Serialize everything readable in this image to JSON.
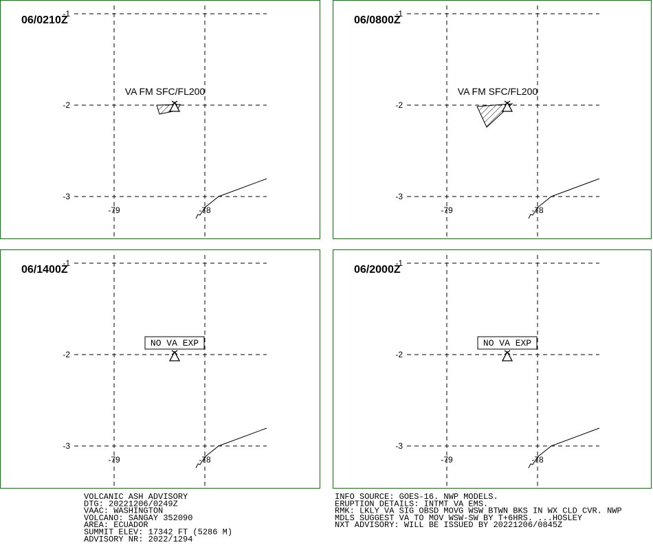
{
  "panels": [
    {
      "time": "06/0210Z",
      "label": "VA FM SFC/FL200"
    },
    {
      "time": "06/0800Z",
      "label": "VA FM SFC/FL200"
    },
    {
      "time": "06/1400Z",
      "label": "NO VA EXP"
    },
    {
      "time": "06/2000Z",
      "label": "NO VA EXP"
    }
  ],
  "lat_ticks": [
    -1,
    -2,
    -3
  ],
  "lon_ticks": [
    -79,
    -78
  ],
  "footer_left": [
    "VOLCANIC ASH ADVISORY",
    "DTG: 20221206/0249Z",
    "VAAC: WASHINGTON",
    "VOLCANO: SANGAY 352090",
    "AREA: ECUADOR",
    "SUMMIT ELEV: 17342 FT (5286 M)",
    "ADVISORY NR: 2022/1294"
  ],
  "footer_right": [
    "INFO SOURCE: GOES-16. NWP MODELS.",
    "ERUPTION DETAILS: INTMT VA EMS.",
    "RMK: LKLY VA SIG OBSD MOVG WSW BTWN BKS IN WX CLD CVR. NWP",
    "MDLS SUGGEST VA TO MOV WSW-SW BY T+6HRS. ...HOSLEY",
    "NXT ADVISORY: WILL BE ISSUED BY 20221206/0845Z"
  ]
}
